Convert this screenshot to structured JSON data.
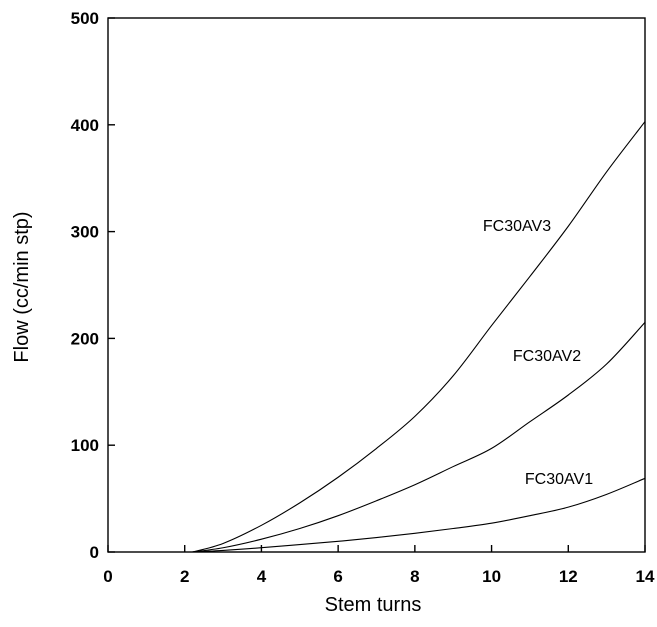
{
  "chart_data": {
    "type": "line",
    "title": "",
    "xlabel": "Stem turns",
    "ylabel": "Flow (cc/min stp)",
    "xlim": [
      0,
      14
    ],
    "ylim": [
      0,
      500
    ],
    "xticks": [
      0,
      2,
      4,
      6,
      8,
      10,
      12,
      14
    ],
    "yticks": [
      0,
      100,
      200,
      300,
      400,
      500
    ],
    "grid": false,
    "legend": "none",
    "series": [
      {
        "name": "FC30AV3",
        "x": [
          2.2,
          3,
          4,
          5,
          6,
          7,
          8,
          9,
          10,
          11,
          12,
          13,
          14
        ],
        "y": [
          0,
          8,
          25,
          46,
          70,
          97,
          127,
          165,
          212,
          258,
          305,
          356,
          403
        ]
      },
      {
        "name": "FC30AV2",
        "x": [
          2.2,
          3,
          4,
          5,
          6,
          7,
          8,
          9,
          10,
          11,
          12,
          13,
          14
        ],
        "y": [
          0,
          4,
          12,
          22,
          34,
          48,
          63,
          80,
          97,
          122,
          147,
          176,
          215
        ]
      },
      {
        "name": "FC30AV1",
        "x": [
          2.2,
          3,
          4,
          5,
          6,
          7,
          8,
          9,
          10,
          11,
          12,
          13,
          14
        ],
        "y": [
          0,
          1.5,
          4,
          7,
          10,
          13.5,
          17.5,
          22,
          27,
          34,
          42,
          54,
          69
        ]
      }
    ]
  }
}
